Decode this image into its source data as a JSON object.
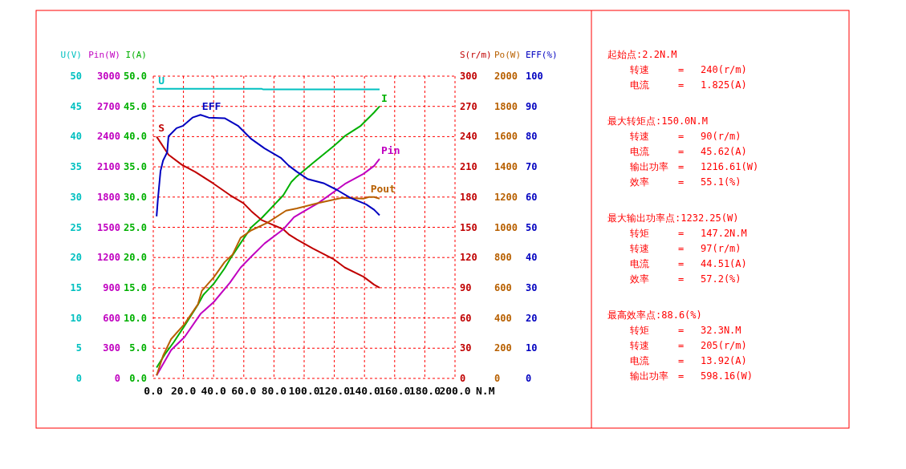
{
  "chart_data": [
    {
      "type": "line",
      "xlabel": "N.M",
      "ylabel": "I(A)",
      "y2label": "S(r/m)",
      "legend": false,
      "xlim": [
        0,
        200
      ],
      "xticks": [
        {
          "value": 0,
          "label": "0.0"
        },
        {
          "value": 20,
          "label": "20.0"
        },
        {
          "value": 40,
          "label": "40.0"
        },
        {
          "value": 60,
          "label": "60.0"
        },
        {
          "value": 80,
          "label": "80.0"
        },
        {
          "value": 100,
          "label": "100.0"
        },
        {
          "value": 120,
          "label": "120.0"
        },
        {
          "value": 140,
          "label": "140.0"
        },
        {
          "value": 160,
          "label": "160.0"
        },
        {
          "value": 180,
          "label": "180.0"
        },
        {
          "value": 200,
          "label": "200.0"
        }
      ],
      "ylim": [
        0,
        50
      ],
      "yticks": [
        {
          "value": 0,
          "label": "0.0"
        },
        {
          "value": 5,
          "label": "5.0"
        },
        {
          "value": 10,
          "label": "10.0"
        },
        {
          "value": 15,
          "label": "15.0"
        },
        {
          "value": 20,
          "label": "20.0"
        },
        {
          "value": 25,
          "label": "25.0"
        },
        {
          "value": 30,
          "label": "30.0"
        },
        {
          "value": 35,
          "label": "35.0"
        },
        {
          "value": 40,
          "label": "40.0"
        },
        {
          "value": 45,
          "label": "45.0"
        },
        {
          "value": 50,
          "label": "50.0"
        }
      ],
      "y2lim": [
        0,
        300
      ],
      "y2ticks": [
        0,
        30,
        60,
        90,
        120,
        150,
        180,
        210,
        240,
        270,
        300
      ],
      "grid": true,
      "series": [
        {
          "name": "I",
          "color": "#00b000",
          "x": [
            2.2,
            8.3,
            13.6,
            20.7,
            29.6,
            33.1,
            40.2,
            47.3,
            50.8,
            57.9,
            65,
            72.1,
            86.2,
            91.5,
            95.1,
            105.7,
            119.9,
            127,
            137.6,
            146.4,
            150
          ],
          "values": [
            1.8,
            4.2,
            6,
            8.7,
            12.2,
            13.8,
            15.7,
            18.2,
            19.7,
            22.4,
            25,
            26.6,
            30.3,
            32.5,
            33.4,
            35.6,
            38.5,
            40.1,
            41.8,
            44,
            45
          ]
        },
        {
          "name": "S",
          "axis": "y2",
          "color": "#c00000",
          "x": [
            2.2,
            10.1,
            19,
            27.8,
            39.3,
            50.8,
            59.7,
            65,
            72,
            86.2,
            89.8,
            95.1,
            105.7,
            119.9,
            127,
            139.3,
            146.4,
            150
          ],
          "values": [
            240,
            222,
            212,
            205,
            194,
            182,
            174,
            166,
            157,
            148,
            143,
            138,
            129,
            118,
            110,
            101,
            93,
            90
          ]
        }
      ]
    },
    {
      "type": "line",
      "ylabel": "Pin(W)",
      "y2label": "Po(W)",
      "tick_labels": "y",
      "legend": false,
      "xlim": [
        0,
        200
      ],
      "ylim": [
        0,
        3000
      ],
      "yticks": [
        0,
        300,
        600,
        900,
        1200,
        1500,
        1800,
        2100,
        2400,
        2700,
        3000
      ],
      "y2lim": [
        0,
        2000
      ],
      "y2ticks": [
        0,
        200,
        400,
        600,
        800,
        1000,
        1200,
        1400,
        1600,
        1800,
        2000
      ],
      "series": [
        {
          "name": "Pin",
          "color": "#c000c0",
          "x": [
            2.2,
            11.8,
            20.7,
            31.3,
            40.2,
            50.8,
            57.9,
            65,
            73.8,
            86.2,
            93.3,
            100,
            109.3,
            127,
            139.3,
            146.4,
            150
          ],
          "values": [
            30,
            280,
            410,
            640,
            760,
            950,
            1100,
            1210,
            1340,
            1480,
            1600,
            1660,
            1740,
            1930,
            2030,
            2110,
            2180
          ]
        },
        {
          "name": "Pout",
          "axis": "y2",
          "color": "#b86000",
          "x": [
            2.2,
            6.5,
            11.8,
            20.7,
            29.6,
            32.2,
            40.2,
            47.3,
            52.6,
            57.9,
            65,
            75.6,
            88,
            95.1,
            109.3,
            125.2,
            139.3,
            142.9,
            146.4,
            150
          ],
          "values": [
            20,
            150,
            260,
            360,
            490,
            580,
            670,
            770,
            820,
            930,
            980,
            1030,
            1110,
            1125,
            1160,
            1195,
            1190,
            1200,
            1200,
            1190
          ]
        }
      ]
    },
    {
      "type": "line",
      "ylabel": "U(V)",
      "y2label": "EFF(%)",
      "tick_labels": "y",
      "legend": false,
      "xlim": [
        0,
        200
      ],
      "ylim": [
        0,
        50
      ],
      "yticks": [
        0,
        5,
        10,
        15,
        20,
        25,
        30,
        35,
        40,
        45,
        50
      ],
      "y2lim": [
        0,
        100
      ],
      "y2ticks": [
        0,
        10,
        20,
        30,
        40,
        50,
        60,
        70,
        80,
        90,
        100
      ],
      "series": [
        {
          "name": "U",
          "color": "#00c0c0",
          "x": [
            2.2,
            72,
            73,
            150
          ],
          "values": [
            47.9,
            47.9,
            47.8,
            47.8
          ]
        },
        {
          "name": "EFF",
          "axis": "y2",
          "color": "#0000c0",
          "x": [
            2.2,
            3,
            4.8,
            6.5,
            9.2,
            10.1,
            15.4,
            19.8,
            26,
            31.3,
            36.7,
            47.3,
            56.1,
            65,
            73.8,
            84.5,
            89.8,
            95.1,
            102.2,
            112.8,
            121.6,
            130.5,
            141.1,
            146.4,
            150
          ],
          "values": [
            53.6,
            58.9,
            68.6,
            72.1,
            74.8,
            80.1,
            82.8,
            83.6,
            86.3,
            87.2,
            86.3,
            86.1,
            83.6,
            79.2,
            76.1,
            73,
            70.4,
            68.4,
            66,
            64.6,
            62.4,
            59.8,
            57.6,
            55.8,
            54
          ]
        }
      ]
    },
    {
      "type": "other",
      "annotations": [
        "起始点:2.2N.M",
        "转速 = 240(r/m)",
        "电流 = 1.825(A)",
        "最大转矩点:150.0N.M",
        "转速 = 90(r/m)",
        "电流 = 45.62(A)",
        "输出功率 = 1216.61(W)",
        "效率 = 55.1(%)",
        "最大输出功率点:1232.25(W)",
        "转矩 = 147.2N.M",
        "转速 = 97(r/m)",
        "电流 = 44.51(A)",
        "效率 = 57.2(%)",
        "最高效率点:88.6(%)",
        "转矩 = 32.3N.M",
        "转速 = 205(r/m)",
        "电流 = 13.92(A)",
        "输出功率 = 598.16(W)"
      ]
    }
  ]
}
